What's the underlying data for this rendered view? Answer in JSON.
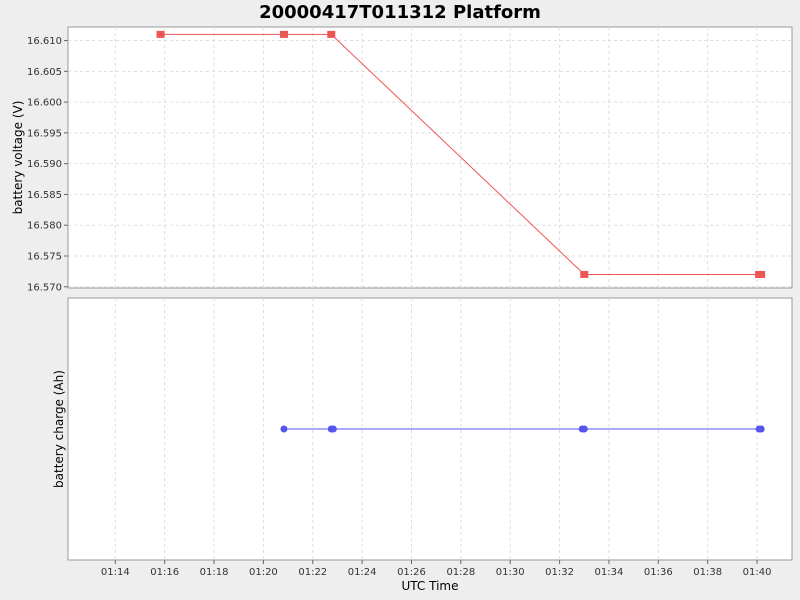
{
  "chart_data": {
    "title": "20000417T011312 Platform",
    "type": "line",
    "xlabel": "UTC Time",
    "x_ticks": [
      "01:14",
      "01:16",
      "01:18",
      "01:20",
      "01:22",
      "01:24",
      "01:26",
      "01:28",
      "01:30",
      "01:32",
      "01:34",
      "01:36",
      "01:38",
      "01:40"
    ],
    "xlim": [
      "01:12:05",
      "01:41:25"
    ],
    "grid": true,
    "subplots": [
      {
        "ylabel": "battery voltage (V)",
        "ylim": [
          16.5698,
          16.6122
        ],
        "y_ticks": [
          "16.570",
          "16.575",
          "16.580",
          "16.585",
          "16.590",
          "16.595",
          "16.600",
          "16.605",
          "16.610"
        ],
        "series": [
          {
            "color": "#ee5555",
            "marker": "square",
            "points": [
              {
                "x": "01:15:50",
                "y": 16.611
              },
              {
                "x": "01:20:50",
                "y": 16.611
              },
              {
                "x": "01:22:45",
                "y": 16.611
              },
              {
                "x": "01:33:00",
                "y": 16.572
              },
              {
                "x": "01:40:05",
                "y": 16.572
              },
              {
                "x": "01:40:10",
                "y": 16.572
              }
            ]
          }
        ]
      },
      {
        "ylabel": "battery charge (Ah)",
        "ylim": [
          0,
          2
        ],
        "y_ticks": [],
        "series": [
          {
            "color": "#5555ee",
            "marker": "circle",
            "points": [
              {
                "x": "01:20:50",
                "y": 1
              },
              {
                "x": "01:22:45",
                "y": 1
              },
              {
                "x": "01:22:50",
                "y": 1
              },
              {
                "x": "01:32:55",
                "y": 1
              },
              {
                "x": "01:33:00",
                "y": 1
              },
              {
                "x": "01:40:05",
                "y": 1
              },
              {
                "x": "01:40:10",
                "y": 1
              }
            ]
          }
        ]
      }
    ]
  }
}
